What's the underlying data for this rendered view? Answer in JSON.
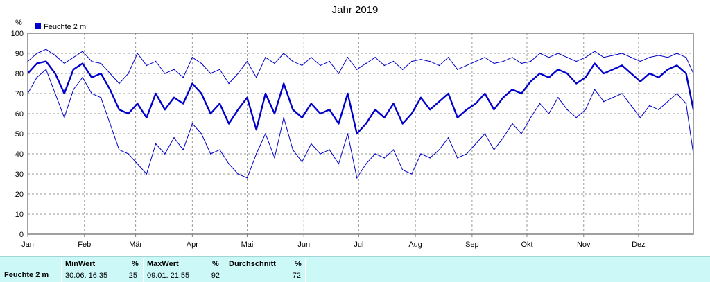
{
  "chart_title": "Jahr 2019",
  "chart_data": {
    "type": "line",
    "title": "Jahr 2019",
    "ylabel": "%",
    "ylim": [
      0,
      100
    ],
    "yticks": [
      0,
      10,
      20,
      30,
      40,
      50,
      60,
      70,
      80,
      90,
      100
    ],
    "xticks": [
      "Jan",
      "Feb",
      "Mär",
      "Apr",
      "Mai",
      "Jun",
      "Jul",
      "Aug",
      "Sep",
      "Okt",
      "Nov",
      "Dez"
    ],
    "x_unit": "day of year 2019 (1–365)",
    "grid": true,
    "legend": {
      "label": "Feuchte  2 m",
      "position": "top-left"
    },
    "series_color": "#0000cc",
    "series": [
      {
        "name": "Feuchte  2 m",
        "role": "mean",
        "x": [
          1,
          6,
          11,
          16,
          21,
          26,
          31,
          36,
          41,
          46,
          51,
          56,
          61,
          66,
          71,
          76,
          81,
          86,
          91,
          96,
          101,
          106,
          111,
          116,
          121,
          126,
          131,
          136,
          141,
          146,
          151,
          156,
          161,
          166,
          171,
          176,
          181,
          186,
          191,
          196,
          201,
          206,
          211,
          216,
          221,
          226,
          231,
          236,
          241,
          246,
          251,
          256,
          261,
          266,
          271,
          276,
          281,
          286,
          291,
          296,
          301,
          306,
          311,
          316,
          321,
          326,
          331,
          336,
          341,
          346,
          351,
          356,
          361,
          365
        ],
        "y": [
          80,
          85,
          86,
          80,
          70,
          82,
          85,
          78,
          80,
          72,
          62,
          60,
          65,
          58,
          70,
          62,
          68,
          65,
          75,
          70,
          60,
          65,
          55,
          62,
          68,
          52,
          70,
          60,
          75,
          62,
          58,
          65,
          60,
          62,
          55,
          70,
          50,
          55,
          62,
          58,
          65,
          55,
          60,
          68,
          62,
          66,
          70,
          58,
          62,
          65,
          70,
          62,
          68,
          72,
          70,
          76,
          80,
          78,
          82,
          80,
          75,
          78,
          85,
          80,
          82,
          84,
          80,
          76,
          80,
          78,
          82,
          84,
          80,
          62
        ]
      },
      {
        "name": "",
        "role": "max",
        "x": [
          1,
          6,
          11,
          16,
          21,
          26,
          31,
          36,
          41,
          46,
          51,
          56,
          61,
          66,
          71,
          76,
          81,
          86,
          91,
          96,
          101,
          106,
          111,
          116,
          121,
          126,
          131,
          136,
          141,
          146,
          151,
          156,
          161,
          166,
          171,
          176,
          181,
          186,
          191,
          196,
          201,
          206,
          211,
          216,
          221,
          226,
          231,
          236,
          241,
          246,
          251,
          256,
          261,
          266,
          271,
          276,
          281,
          286,
          291,
          296,
          301,
          306,
          311,
          316,
          321,
          326,
          331,
          336,
          341,
          346,
          351,
          356,
          361,
          365
        ],
        "y": [
          86,
          90,
          92,
          89,
          85,
          88,
          91,
          86,
          85,
          80,
          75,
          80,
          90,
          84,
          86,
          80,
          82,
          78,
          88,
          85,
          80,
          82,
          75,
          80,
          86,
          78,
          88,
          85,
          90,
          86,
          84,
          88,
          84,
          86,
          80,
          88,
          82,
          85,
          88,
          84,
          86,
          82,
          86,
          87,
          86,
          84,
          88,
          82,
          84,
          86,
          88,
          85,
          86,
          88,
          85,
          86,
          90,
          88,
          90,
          88,
          86,
          88,
          91,
          88,
          89,
          90,
          88,
          86,
          88,
          89,
          88,
          90,
          88,
          80
        ]
      },
      {
        "name": "",
        "role": "min",
        "x": [
          1,
          6,
          11,
          16,
          21,
          26,
          31,
          36,
          41,
          46,
          51,
          56,
          61,
          66,
          71,
          76,
          81,
          86,
          91,
          96,
          101,
          106,
          111,
          116,
          121,
          126,
          131,
          136,
          141,
          146,
          151,
          156,
          161,
          166,
          171,
          176,
          181,
          186,
          191,
          196,
          201,
          206,
          211,
          216,
          221,
          226,
          231,
          236,
          241,
          246,
          251,
          256,
          261,
          266,
          271,
          276,
          281,
          286,
          291,
          296,
          301,
          306,
          311,
          316,
          321,
          326,
          331,
          336,
          341,
          346,
          351,
          356,
          361,
          365
        ],
        "y": [
          70,
          78,
          82,
          70,
          58,
          72,
          78,
          70,
          68,
          55,
          42,
          40,
          35,
          30,
          45,
          40,
          48,
          42,
          55,
          50,
          40,
          42,
          35,
          30,
          28,
          40,
          50,
          38,
          58,
          42,
          36,
          45,
          40,
          42,
          35,
          50,
          28,
          35,
          40,
          38,
          42,
          32,
          30,
          40,
          38,
          42,
          48,
          38,
          40,
          45,
          50,
          42,
          48,
          55,
          50,
          58,
          65,
          60,
          68,
          62,
          58,
          62,
          72,
          66,
          68,
          70,
          64,
          58,
          64,
          62,
          66,
          70,
          65,
          40
        ]
      }
    ]
  },
  "footer": {
    "series_label": "Feuchte  2 m",
    "min": {
      "header": "MinWert",
      "unit": "%",
      "datetime": "30.06.  16:35",
      "value": "25"
    },
    "max": {
      "header": "MaxWert",
      "unit": "%",
      "datetime": "09.01.  21:55",
      "value": "92"
    },
    "avg": {
      "header": "Durchschnitt",
      "unit": "%",
      "value": "72"
    }
  }
}
